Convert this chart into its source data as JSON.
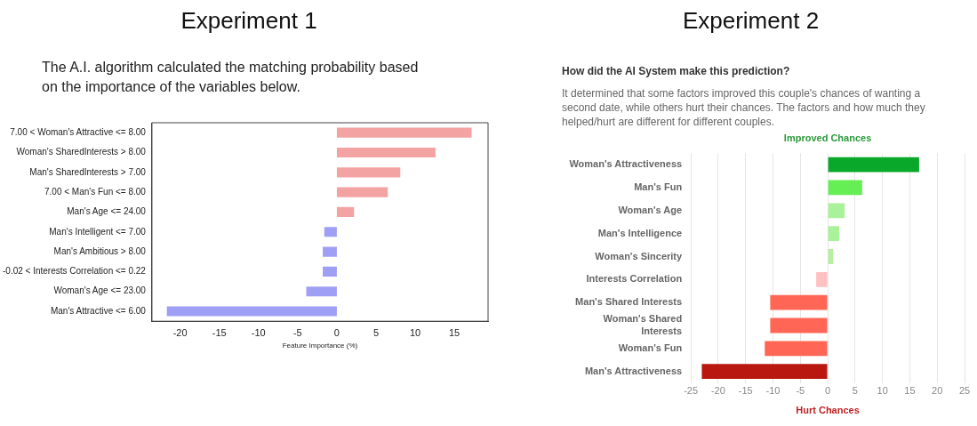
{
  "chart_data": [
    {
      "type": "bar",
      "orientation": "horizontal",
      "title": "Experiment 1",
      "subtitle": "The A.I. algorithm calculated the matching probability based on the importance of the variables below.",
      "xlabel": "Feature Importance (%)",
      "categories": [
        "7.00 < Woman's Attractive <= 8.00",
        "Woman's SharedInterests > 8.00",
        "Man's SharedInterests > 7.00",
        "7.00 < Man's Fun <= 8.00",
        "Man's Age <= 24.00",
        "Man's Intelligent <= 7.00",
        "Man's Ambitious > 8.00",
        "-0.02 < Interests Correlation <= 0.22",
        "Woman's Age <= 23.00",
        "Man's Attractive <= 6.00"
      ],
      "values": [
        17.2,
        12.6,
        8.1,
        6.5,
        2.2,
        -1.6,
        -1.8,
        -1.8,
        -3.9,
        -21.7
      ],
      "colors": [
        "#f4a3a3",
        "#f4a3a3",
        "#f4a3a3",
        "#f4a3a3",
        "#f4a3a3",
        "#9f9ff5",
        "#9f9ff5",
        "#9f9ff5",
        "#9f9ff5",
        "#9f9ff5"
      ],
      "xlim": [
        -23.6,
        19.3
      ],
      "xticks": [
        -20,
        -15,
        -10,
        -5,
        0,
        5,
        10,
        15
      ],
      "grid": false
    },
    {
      "type": "bar",
      "orientation": "horizontal",
      "title": "Experiment 2",
      "subtitle": "How did the AI System make this prediction?",
      "annotations": [
        "It determined that some factors improved this couple's chances of wanting a second date, while others hurt their chances. The factors and how much they helped/hurt are different for different couples."
      ],
      "xlabel": "Hurt Chances",
      "x2label": "Improved Chances",
      "categories": [
        "Woman's Attractiveness",
        "Man's Fun",
        "Woman's Age",
        "Man's Intelligence",
        "Woman's Sincerity",
        "Interests Correlation",
        "Man's Shared Interests",
        "Woman's Shared Interests",
        "Woman's Fun",
        "Man's Attractiveness"
      ],
      "values": [
        16.7,
        6.3,
        3.1,
        2.1,
        1.0,
        -2.1,
        -10.5,
        -10.5,
        -11.5,
        -23.0
      ],
      "colors": [
        "#0aa82a",
        "#66ee55",
        "#aaf29a",
        "#aaf29a",
        "#b6f0a0",
        "#ffc0c0",
        "#ff6655",
        "#ff6655",
        "#ff6655",
        "#b81810"
      ],
      "xlim": [
        -25,
        25
      ],
      "xticks": [
        -25,
        -20,
        -15,
        -10,
        -5,
        0,
        5,
        10,
        15,
        20,
        25
      ],
      "grid": "x"
    }
  ]
}
